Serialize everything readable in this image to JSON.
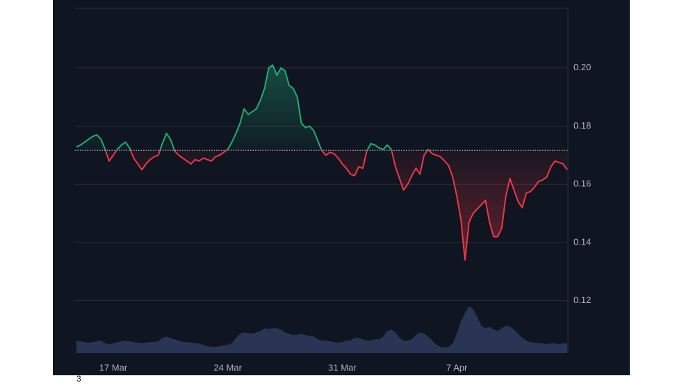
{
  "chart_data": {
    "type": "baseline",
    "baseline": 0.1717,
    "categories": [
      null,
      null,
      null,
      null,
      null,
      null,
      null,
      null,
      null,
      "17 Mar",
      null,
      null,
      null,
      null,
      null,
      null,
      null,
      null,
      null,
      null,
      null,
      null,
      null,
      null,
      null,
      null,
      null,
      null,
      null,
      null,
      null,
      null,
      null,
      null,
      null,
      null,
      null,
      "24 Mar",
      null,
      null,
      null,
      null,
      null,
      null,
      null,
      null,
      null,
      null,
      null,
      null,
      null,
      null,
      null,
      null,
      null,
      null,
      null,
      null,
      null,
      null,
      null,
      null,
      null,
      null,
      null,
      "31 Mar",
      null,
      null,
      null,
      null,
      null,
      null,
      null,
      null,
      null,
      null,
      null,
      null,
      null,
      null,
      null,
      null,
      null,
      null,
      null,
      null,
      null,
      null,
      null,
      null,
      null,
      null,
      null,
      "7 Apr",
      null,
      null,
      null,
      null,
      null,
      null,
      null,
      null,
      null,
      null,
      null,
      null,
      null,
      null,
      null,
      null,
      null,
      null,
      null,
      null,
      null,
      null,
      null,
      null,
      null,
      null,
      null
    ],
    "series": [
      {
        "color": "#22ab77",
        "down_color": "#f23645",
        "values": [
          0.1729,
          0.1735,
          0.1745,
          0.1755,
          0.1765,
          0.177,
          0.1755,
          0.172,
          0.168,
          0.17,
          0.172,
          0.1735,
          0.1745,
          0.1725,
          0.169,
          0.167,
          0.165,
          0.167,
          0.1685,
          0.1695,
          0.17,
          0.174,
          0.1775,
          0.1755,
          0.1715,
          0.17,
          0.169,
          0.168,
          0.167,
          0.1685,
          0.168,
          0.169,
          0.1685,
          0.168,
          0.1695,
          0.17,
          0.171,
          0.172,
          0.1745,
          0.1775,
          0.181,
          0.186,
          0.184,
          0.185,
          0.186,
          0.189,
          0.193,
          0.2,
          0.201,
          0.1975,
          0.2,
          0.199,
          0.194,
          0.193,
          0.19,
          0.181,
          0.1795,
          0.18,
          0.1785,
          0.175,
          0.1715,
          0.17,
          0.171,
          0.1705,
          0.169,
          0.167,
          0.1655,
          0.1635,
          0.163,
          0.166,
          0.1655,
          0.1715,
          0.174,
          0.1735,
          0.1725,
          0.172,
          0.1735,
          0.172,
          0.166,
          0.162,
          0.158,
          0.16,
          0.163,
          0.1655,
          0.1635,
          0.17,
          0.172,
          0.1705,
          0.17,
          0.1695,
          0.168,
          0.1665,
          0.1625,
          0.156,
          0.148,
          0.134,
          0.147,
          0.15,
          0.1515,
          0.153,
          0.1545,
          0.147,
          0.142,
          0.142,
          0.145,
          0.156,
          0.162,
          0.158,
          0.154,
          0.152,
          0.157,
          0.1575,
          0.159,
          0.161,
          0.1615,
          0.1625,
          0.166,
          0.168,
          0.1675,
          0.167,
          0.165
        ]
      },
      {
        "color": "#2f3a5e",
        "axis": "y2",
        "values": [
          18,
          17,
          16,
          15,
          16,
          17,
          18,
          14,
          13,
          14,
          16,
          17,
          18,
          17,
          16,
          15,
          14,
          15,
          16,
          16,
          17,
          22,
          24,
          22,
          20,
          18,
          16,
          16,
          15,
          14,
          14,
          12,
          10,
          9,
          9,
          10,
          11,
          12,
          14,
          22,
          28,
          30,
          29,
          28,
          30,
          32,
          36,
          35,
          36,
          36,
          34,
          30,
          28,
          26,
          27,
          28,
          26,
          25,
          24,
          20,
          18,
          18,
          17,
          16,
          15,
          16,
          18,
          18,
          22,
          22,
          20,
          18,
          18,
          20,
          20,
          24,
          32,
          34,
          30,
          22,
          18,
          18,
          20,
          26,
          30,
          28,
          24,
          18,
          12,
          9,
          8,
          9,
          14,
          28,
          46,
          58,
          68,
          64,
          52,
          40,
          36,
          38,
          34,
          32,
          36,
          40,
          38,
          34,
          28,
          22,
          18,
          16,
          15,
          14,
          14,
          13,
          14,
          14,
          13,
          14,
          14
        ]
      }
    ],
    "ylim": [
      0.102,
      0.2205
    ],
    "yticks": [
      0.12,
      0.14,
      0.16,
      0.18,
      {
        "value": 0.2,
        "label": "0.20"
      }
    ],
    "y2lim": [
      0,
      500
    ],
    "grid": true,
    "footnote": "3"
  }
}
